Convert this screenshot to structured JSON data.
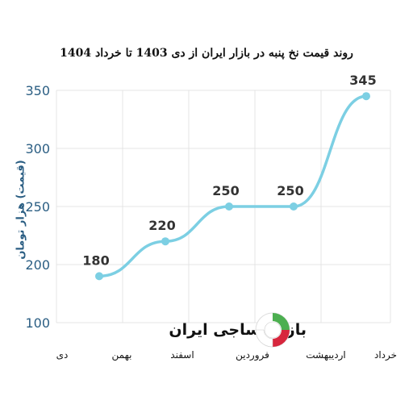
{
  "title": "روند قیمت نخ پنبه در بازار ایران از دی 1403 تا خرداد 1404",
  "watermark": {
    "text": "بازار نساجی ایران"
  },
  "colors": {
    "line": "#7ccfe3",
    "marker": "#7ccfe3",
    "label": "#333333",
    "ylabel": "#2b5e83",
    "grid": "#e4e4e4",
    "tick": "#2b5e83",
    "logo_red": "#d7263d",
    "logo_green": "#4caf50"
  },
  "chart_data": {
    "type": "line",
    "title": "روند قیمت نخ پنبه در بازار ایران از دی 1403 تا خرداد 1404",
    "ylabel": "(قیمت) هزار تومان",
    "xlabel": "",
    "categories": [
      "دی",
      "بهمن",
      "اسفند",
      "فروردین",
      "اردیبهشت",
      "خرداد"
    ],
    "points": [
      {
        "category": "بهمن",
        "value": 180,
        "label": "180"
      },
      {
        "category": "اسفند",
        "value": 220,
        "label": "220"
      },
      {
        "category": "فروردین",
        "value": 250,
        "label": "250"
      },
      {
        "category": "اردیبهشت",
        "value": 250,
        "label": "250"
      },
      {
        "category": "خرداد",
        "value": 345,
        "label": "345"
      }
    ],
    "yticks": [
      100,
      200,
      250,
      300,
      350
    ],
    "ytick_positions": [
      100,
      200,
      250,
      300,
      350
    ],
    "ylim": [
      100,
      350
    ],
    "grid": true
  }
}
